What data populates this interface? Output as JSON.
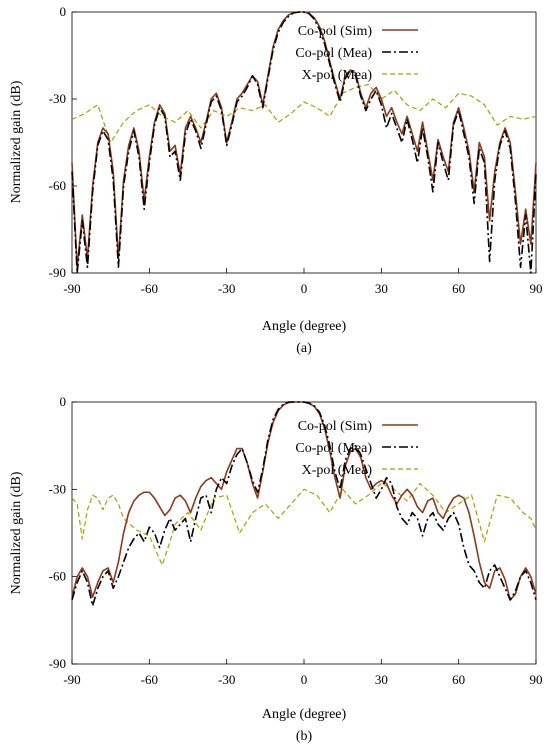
{
  "colors": {
    "co_pol_sim": "#8b3a1a",
    "co_pol_mea": "#000000",
    "x_pol_mea": "#a8a000"
  },
  "chart_data": [
    {
      "type": "line",
      "caption": "(a)",
      "xlabel": "Angle (degree)",
      "ylabel": "Normalized gain (dB)",
      "xlim": [
        -90,
        90
      ],
      "ylim": [
        -90,
        0
      ],
      "xticks": [
        -90,
        -60,
        -30,
        0,
        30,
        60,
        90
      ],
      "yticks": [
        0,
        -30,
        -60,
        -90
      ],
      "grid": false,
      "legend_position": "top-right",
      "series": [
        {
          "name": "Co-pol (Sim)",
          "style": "solid",
          "x": [
            -90,
            -88,
            -86,
            -84,
            -82,
            -80,
            -78,
            -76,
            -74,
            -72,
            -70,
            -68,
            -66,
            -64,
            -62,
            -60,
            -58,
            -56,
            -54,
            -52,
            -50,
            -48,
            -46,
            -44,
            -42,
            -40,
            -38,
            -36,
            -34,
            -32,
            -30,
            -28,
            -26,
            -24,
            -22,
            -20,
            -18,
            -16,
            -14,
            -12,
            -10,
            -8,
            -6,
            -4,
            -2,
            0,
            2,
            4,
            6,
            8,
            10,
            12,
            14,
            16,
            18,
            20,
            22,
            24,
            26,
            28,
            30,
            32,
            34,
            36,
            38,
            40,
            42,
            44,
            46,
            48,
            50,
            52,
            54,
            56,
            58,
            60,
            62,
            64,
            66,
            68,
            70,
            72,
            74,
            76,
            78,
            80,
            82,
            84,
            86,
            88,
            90
          ],
          "y": [
            -52,
            -88,
            -70,
            -85,
            -60,
            -45,
            -40,
            -42,
            -55,
            -85,
            -58,
            -46,
            -40,
            -48,
            -65,
            -50,
            -38,
            -32,
            -35,
            -48,
            -46,
            -56,
            -40,
            -36,
            -40,
            -45,
            -38,
            -30,
            -28,
            -33,
            -45,
            -38,
            -30,
            -28,
            -25,
            -22,
            -24,
            -32,
            -22,
            -12,
            -6,
            -3,
            -1,
            -0.2,
            0,
            0,
            -0.5,
            -2,
            -5,
            -10,
            -17,
            -24,
            -30,
            -22,
            -20,
            -21,
            -28,
            -33,
            -28,
            -26,
            -30,
            -36,
            -33,
            -38,
            -42,
            -36,
            -42,
            -48,
            -38,
            -48,
            -58,
            -44,
            -50,
            -55,
            -38,
            -33,
            -40,
            -48,
            -62,
            -45,
            -50,
            -72,
            -55,
            -45,
            -40,
            -45,
            -62,
            -80,
            -68,
            -80,
            -52
          ]
        },
        {
          "name": "Co-pol (Mea)",
          "style": "dashdot",
          "x": [
            -90,
            -88,
            -86,
            -84,
            -82,
            -80,
            -78,
            -76,
            -74,
            -72,
            -70,
            -68,
            -66,
            -64,
            -62,
            -60,
            -58,
            -56,
            -54,
            -52,
            -50,
            -48,
            -46,
            -44,
            -42,
            -40,
            -38,
            -36,
            -34,
            -32,
            -30,
            -28,
            -26,
            -24,
            -22,
            -20,
            -18,
            -16,
            -14,
            -12,
            -10,
            -8,
            -6,
            -4,
            -2,
            0,
            2,
            4,
            6,
            8,
            10,
            12,
            14,
            16,
            18,
            20,
            22,
            24,
            26,
            28,
            30,
            32,
            34,
            36,
            38,
            40,
            42,
            44,
            46,
            48,
            50,
            52,
            54,
            56,
            58,
            60,
            62,
            64,
            66,
            68,
            70,
            72,
            74,
            76,
            78,
            80,
            82,
            84,
            86,
            88,
            90
          ],
          "y": [
            -55,
            -90,
            -72,
            -88,
            -62,
            -46,
            -41,
            -44,
            -58,
            -88,
            -60,
            -48,
            -41,
            -50,
            -68,
            -52,
            -39,
            -33,
            -36,
            -50,
            -48,
            -58,
            -42,
            -37,
            -41,
            -47,
            -39,
            -31,
            -29,
            -34,
            -46,
            -39,
            -31,
            -29,
            -26,
            -22,
            -25,
            -33,
            -23,
            -13,
            -7,
            -3.5,
            -1.5,
            -0.3,
            0,
            0,
            -0.6,
            -2.5,
            -6,
            -11,
            -18,
            -25,
            -31,
            -23,
            -20,
            -22,
            -29,
            -34,
            -30,
            -27,
            -32,
            -40,
            -35,
            -40,
            -45,
            -37,
            -44,
            -52,
            -40,
            -50,
            -62,
            -45,
            -52,
            -58,
            -39,
            -34,
            -42,
            -50,
            -66,
            -47,
            -52,
            -86,
            -58,
            -46,
            -41,
            -47,
            -65,
            -88,
            -70,
            -90,
            -56
          ]
        },
        {
          "name": "X-pol (Mea)",
          "style": "dashed",
          "x": [
            -90,
            -85,
            -80,
            -75,
            -70,
            -65,
            -60,
            -55,
            -50,
            -45,
            -40,
            -35,
            -30,
            -25,
            -20,
            -15,
            -10,
            -5,
            0,
            5,
            10,
            15,
            20,
            25,
            30,
            35,
            40,
            45,
            50,
            55,
            60,
            65,
            70,
            75,
            80,
            85,
            90
          ],
          "y": [
            -37,
            -35,
            -32,
            -45,
            -38,
            -34,
            -32,
            -36,
            -38,
            -34,
            -40,
            -34,
            -36,
            -33,
            -34,
            -32,
            -38,
            -35,
            -31,
            -33,
            -36,
            -28,
            -26,
            -25,
            -30,
            -27,
            -32,
            -34,
            -30,
            -33,
            -28,
            -29,
            -32,
            -39,
            -36,
            -37,
            -36
          ]
        }
      ]
    },
    {
      "type": "line",
      "caption": "(b)",
      "xlabel": "Angle (degree)",
      "ylabel": "Normalized gain (dB)",
      "xlim": [
        -90,
        90
      ],
      "ylim": [
        -90,
        0
      ],
      "xticks": [
        -90,
        -60,
        -30,
        0,
        30,
        60,
        90
      ],
      "yticks": [
        0,
        -30,
        -60,
        -90
      ],
      "grid": false,
      "legend_position": "top-right",
      "series": [
        {
          "name": "Co-pol (Sim)",
          "style": "solid",
          "x": [
            -90,
            -88,
            -86,
            -84,
            -82,
            -80,
            -78,
            -76,
            -74,
            -72,
            -70,
            -68,
            -66,
            -64,
            -62,
            -60,
            -58,
            -56,
            -54,
            -52,
            -50,
            -48,
            -46,
            -44,
            -42,
            -40,
            -38,
            -36,
            -34,
            -32,
            -30,
            -28,
            -26,
            -24,
            -22,
            -20,
            -18,
            -16,
            -14,
            -12,
            -10,
            -8,
            -6,
            -4,
            -2,
            0,
            2,
            4,
            6,
            8,
            10,
            12,
            14,
            16,
            18,
            20,
            22,
            24,
            26,
            28,
            30,
            32,
            34,
            36,
            38,
            40,
            42,
            44,
            46,
            48,
            50,
            52,
            54,
            56,
            58,
            60,
            62,
            64,
            66,
            68,
            70,
            72,
            74,
            76,
            78,
            80,
            82,
            84,
            86,
            88,
            90
          ],
          "y": [
            -67,
            -60,
            -57,
            -60,
            -67,
            -62,
            -58,
            -57,
            -62,
            -55,
            -45,
            -38,
            -34,
            -32,
            -31,
            -31,
            -33,
            -36,
            -39,
            -37,
            -33,
            -32,
            -34,
            -38,
            -33,
            -29,
            -27,
            -26,
            -28,
            -30,
            -24,
            -20,
            -16,
            -16,
            -21,
            -28,
            -33,
            -24,
            -14,
            -7,
            -3,
            -1,
            -0.2,
            0,
            0,
            0,
            -0.5,
            -1.5,
            -4,
            -9,
            -17,
            -26,
            -33,
            -22,
            -17,
            -16,
            -19,
            -26,
            -30,
            -28,
            -27,
            -28,
            -32,
            -35,
            -32,
            -30,
            -32,
            -36,
            -38,
            -34,
            -33,
            -38,
            -40,
            -36,
            -33,
            -32,
            -33,
            -38,
            -46,
            -55,
            -62,
            -64,
            -58,
            -57,
            -61,
            -68,
            -66,
            -60,
            -57,
            -60,
            -66
          ]
        },
        {
          "name": "Co-pol (Mea)",
          "style": "dashdot",
          "x": [
            -90,
            -88,
            -86,
            -84,
            -82,
            -80,
            -78,
            -76,
            -74,
            -72,
            -70,
            -68,
            -66,
            -64,
            -62,
            -60,
            -58,
            -56,
            -54,
            -52,
            -50,
            -48,
            -46,
            -44,
            -42,
            -40,
            -38,
            -36,
            -34,
            -32,
            -30,
            -28,
            -26,
            -24,
            -22,
            -20,
            -18,
            -16,
            -14,
            -12,
            -10,
            -8,
            -6,
            -4,
            -2,
            0,
            2,
            4,
            6,
            8,
            10,
            12,
            14,
            16,
            18,
            20,
            22,
            24,
            26,
            28,
            30,
            32,
            34,
            36,
            38,
            40,
            42,
            44,
            46,
            48,
            50,
            52,
            54,
            56,
            58,
            60,
            62,
            64,
            66,
            68,
            70,
            72,
            74,
            76,
            78,
            80,
            82,
            84,
            86,
            88,
            90
          ],
          "y": [
            -68,
            -62,
            -58,
            -62,
            -70,
            -64,
            -60,
            -58,
            -64,
            -60,
            -55,
            -50,
            -47,
            -45,
            -48,
            -43,
            -45,
            -50,
            -44,
            -40,
            -44,
            -42,
            -40,
            -48,
            -40,
            -33,
            -32,
            -38,
            -30,
            -26,
            -28,
            -22,
            -18,
            -16,
            -21,
            -27,
            -31,
            -23,
            -13,
            -6,
            -2.5,
            -0.8,
            0,
            0,
            0,
            0,
            -0.4,
            -1.3,
            -3.5,
            -8,
            -15,
            -24,
            -30,
            -20,
            -16,
            -15,
            -18,
            -23,
            -28,
            -33,
            -30,
            -26,
            -28,
            -36,
            -40,
            -42,
            -38,
            -40,
            -46,
            -40,
            -38,
            -42,
            -44,
            -40,
            -38,
            -42,
            -50,
            -56,
            -58,
            -62,
            -64,
            -58,
            -56,
            -60,
            -64,
            -68,
            -65,
            -60,
            -58,
            -62,
            -68
          ]
        },
        {
          "name": "X-pol (Mea)",
          "style": "dashed",
          "x": [
            -90,
            -88,
            -86,
            -84,
            -82,
            -80,
            -78,
            -76,
            -74,
            -72,
            -70,
            -65,
            -60,
            -55,
            -52,
            -50,
            -45,
            -40,
            -35,
            -30,
            -25,
            -20,
            -15,
            -10,
            -5,
            0,
            5,
            10,
            15,
            20,
            25,
            30,
            35,
            40,
            45,
            50,
            55,
            60,
            65,
            70,
            75,
            80,
            85,
            88,
            90
          ],
          "y": [
            -33,
            -35,
            -47,
            -37,
            -32,
            -33,
            -37,
            -33,
            -32,
            -35,
            -40,
            -44,
            -46,
            -56,
            -48,
            -42,
            -38,
            -44,
            -33,
            -32,
            -45,
            -38,
            -35,
            -40,
            -35,
            -30,
            -32,
            -38,
            -30,
            -35,
            -32,
            -28,
            -30,
            -34,
            -28,
            -32,
            -38,
            -35,
            -32,
            -48,
            -32,
            -33,
            -38,
            -40,
            -44
          ]
        }
      ]
    }
  ]
}
